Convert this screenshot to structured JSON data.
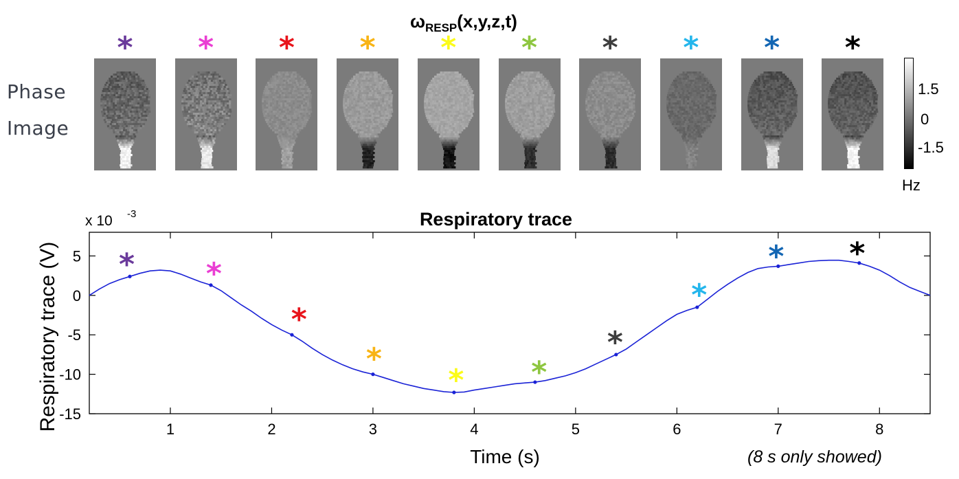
{
  "phase_label": [
    "Phase",
    "Image"
  ],
  "omega": {
    "symbol": "ω",
    "subscript": "RESP",
    "args": "(x,y,z,t)"
  },
  "colors": {
    "purple": "#6a3a9b",
    "magenta": "#ea3fd3",
    "red": "#e8141b",
    "orange": "#f8b415",
    "yellow": "#fbfb1a",
    "green": "#8ec640",
    "dark_gray": "#3e3e3e",
    "light_blue": "#24b6ec",
    "blue": "#1366b3",
    "black": "#000000",
    "line": "#1a22d6",
    "frame_bg": "#7b7b7b"
  },
  "frames": [
    {
      "star": "*",
      "color": "purple",
      "body": 92,
      "body_spread": 25,
      "spinal": 242
    },
    {
      "star": "*",
      "color": "magenta",
      "body": 112,
      "body_spread": 28,
      "spinal": 232
    },
    {
      "star": "*",
      "color": "red",
      "body": 140,
      "body_spread": 10,
      "spinal": 160
    },
    {
      "star": "*",
      "color": "orange",
      "body": 155,
      "body_spread": 12,
      "spinal": 35
    },
    {
      "star": "*",
      "color": "yellow",
      "body": 165,
      "body_spread": 10,
      "spinal": 20
    },
    {
      "star": "*",
      "color": "green",
      "body": 158,
      "body_spread": 12,
      "spinal": 45
    },
    {
      "star": "*",
      "color": "dark_gray",
      "body": 140,
      "body_spread": 12,
      "spinal": 45
    },
    {
      "star": "*",
      "color": "light_blue",
      "body": 105,
      "body_spread": 12,
      "spinal": 130
    },
    {
      "star": "*",
      "color": "blue",
      "body": 80,
      "body_spread": 18,
      "spinal": 220
    },
    {
      "star": "*",
      "color": "black",
      "body": 78,
      "body_spread": 18,
      "spinal": 245
    }
  ],
  "colorbar": {
    "ticks": [
      "1.5",
      "0",
      "-1.5"
    ],
    "unit": "Hz"
  },
  "footnote": "(8 s only showed)",
  "chart_data": {
    "type": "line",
    "title": "Respiratory trace",
    "xlabel": "Time (s)",
    "ylabel": "Respiratory trace (V)",
    "yscale_label": "x 10",
    "yscale_exp": "-3",
    "xlim": [
      0.2,
      8.5
    ],
    "ylim": [
      -15,
      8
    ],
    "xticks": [
      1,
      2,
      3,
      4,
      5,
      6,
      7,
      8
    ],
    "yticks": [
      5,
      0,
      -5,
      -10,
      -15
    ],
    "series": [
      {
        "name": "respiratory trace",
        "color": "line",
        "x": [
          0.2,
          0.3,
          0.4,
          0.5,
          0.6,
          0.7,
          0.8,
          0.9,
          1.0,
          1.1,
          1.2,
          1.3,
          1.4,
          1.5,
          1.6,
          1.7,
          1.8,
          1.9,
          2.0,
          2.1,
          2.2,
          2.3,
          2.4,
          2.5,
          2.6,
          2.7,
          2.8,
          2.9,
          3.0,
          3.1,
          3.2,
          3.3,
          3.4,
          3.5,
          3.6,
          3.7,
          3.8,
          3.9,
          4.0,
          4.1,
          4.2,
          4.3,
          4.4,
          4.5,
          4.6,
          4.7,
          4.8,
          4.9,
          5.0,
          5.1,
          5.2,
          5.3,
          5.4,
          5.5,
          5.6,
          5.7,
          5.8,
          5.9,
          6.0,
          6.1,
          6.2,
          6.3,
          6.4,
          6.5,
          6.6,
          6.7,
          6.8,
          6.9,
          7.0,
          7.1,
          7.2,
          7.3,
          7.4,
          7.5,
          7.6,
          7.7,
          7.8,
          7.9,
          8.0,
          8.1,
          8.2,
          8.3,
          8.4,
          8.5
        ],
        "y": [
          0.0,
          0.8,
          1.5,
          2.0,
          2.4,
          2.8,
          3.1,
          3.2,
          3.1,
          2.7,
          2.2,
          1.7,
          1.3,
          0.6,
          -0.3,
          -1.2,
          -2.0,
          -2.9,
          -3.7,
          -4.4,
          -5.0,
          -5.8,
          -6.7,
          -7.5,
          -8.2,
          -8.8,
          -9.3,
          -9.7,
          -10.0,
          -10.4,
          -10.8,
          -11.2,
          -11.5,
          -11.8,
          -12.0,
          -12.2,
          -12.3,
          -12.25,
          -12.0,
          -11.8,
          -11.6,
          -11.4,
          -11.2,
          -11.1,
          -11.0,
          -10.8,
          -10.5,
          -10.2,
          -9.8,
          -9.3,
          -8.7,
          -8.1,
          -7.5,
          -6.8,
          -5.9,
          -5.0,
          -4.1,
          -3.2,
          -2.4,
          -1.9,
          -1.5,
          -0.5,
          0.5,
          1.4,
          2.2,
          2.9,
          3.4,
          3.6,
          3.7,
          3.9,
          4.1,
          4.3,
          4.4,
          4.45,
          4.45,
          4.3,
          4.1,
          3.7,
          3.2,
          2.5,
          1.7,
          1.0,
          0.5,
          0.0
        ]
      }
    ],
    "markers": {
      "x": [
        0.6,
        1.4,
        2.2,
        3.0,
        3.8,
        4.6,
        5.4,
        6.2,
        7.0,
        7.8
      ],
      "y": [
        2.4,
        1.3,
        -5.0,
        -10.0,
        -12.3,
        -11.0,
        -7.5,
        -1.5,
        3.7,
        4.1
      ]
    },
    "annotations": [
      {
        "text": "*",
        "x": 0.57,
        "y": 4.4,
        "color": "purple"
      },
      {
        "text": "*",
        "x": 1.43,
        "y": 3.2,
        "color": "magenta"
      },
      {
        "text": "*",
        "x": 2.27,
        "y": -2.6,
        "color": "red"
      },
      {
        "text": "*",
        "x": 3.01,
        "y": -7.6,
        "color": "orange"
      },
      {
        "text": "*",
        "x": 3.82,
        "y": -10.3,
        "color": "yellow"
      },
      {
        "text": "*",
        "x": 4.64,
        "y": -9.3,
        "color": "green"
      },
      {
        "text": "*",
        "x": 5.39,
        "y": -5.5,
        "color": "dark_gray"
      },
      {
        "text": "*",
        "x": 6.22,
        "y": 0.5,
        "color": "light_blue"
      },
      {
        "text": "*",
        "x": 6.98,
        "y": 5.4,
        "color": "blue"
      },
      {
        "text": "*",
        "x": 7.78,
        "y": 5.8,
        "color": "black"
      }
    ]
  }
}
